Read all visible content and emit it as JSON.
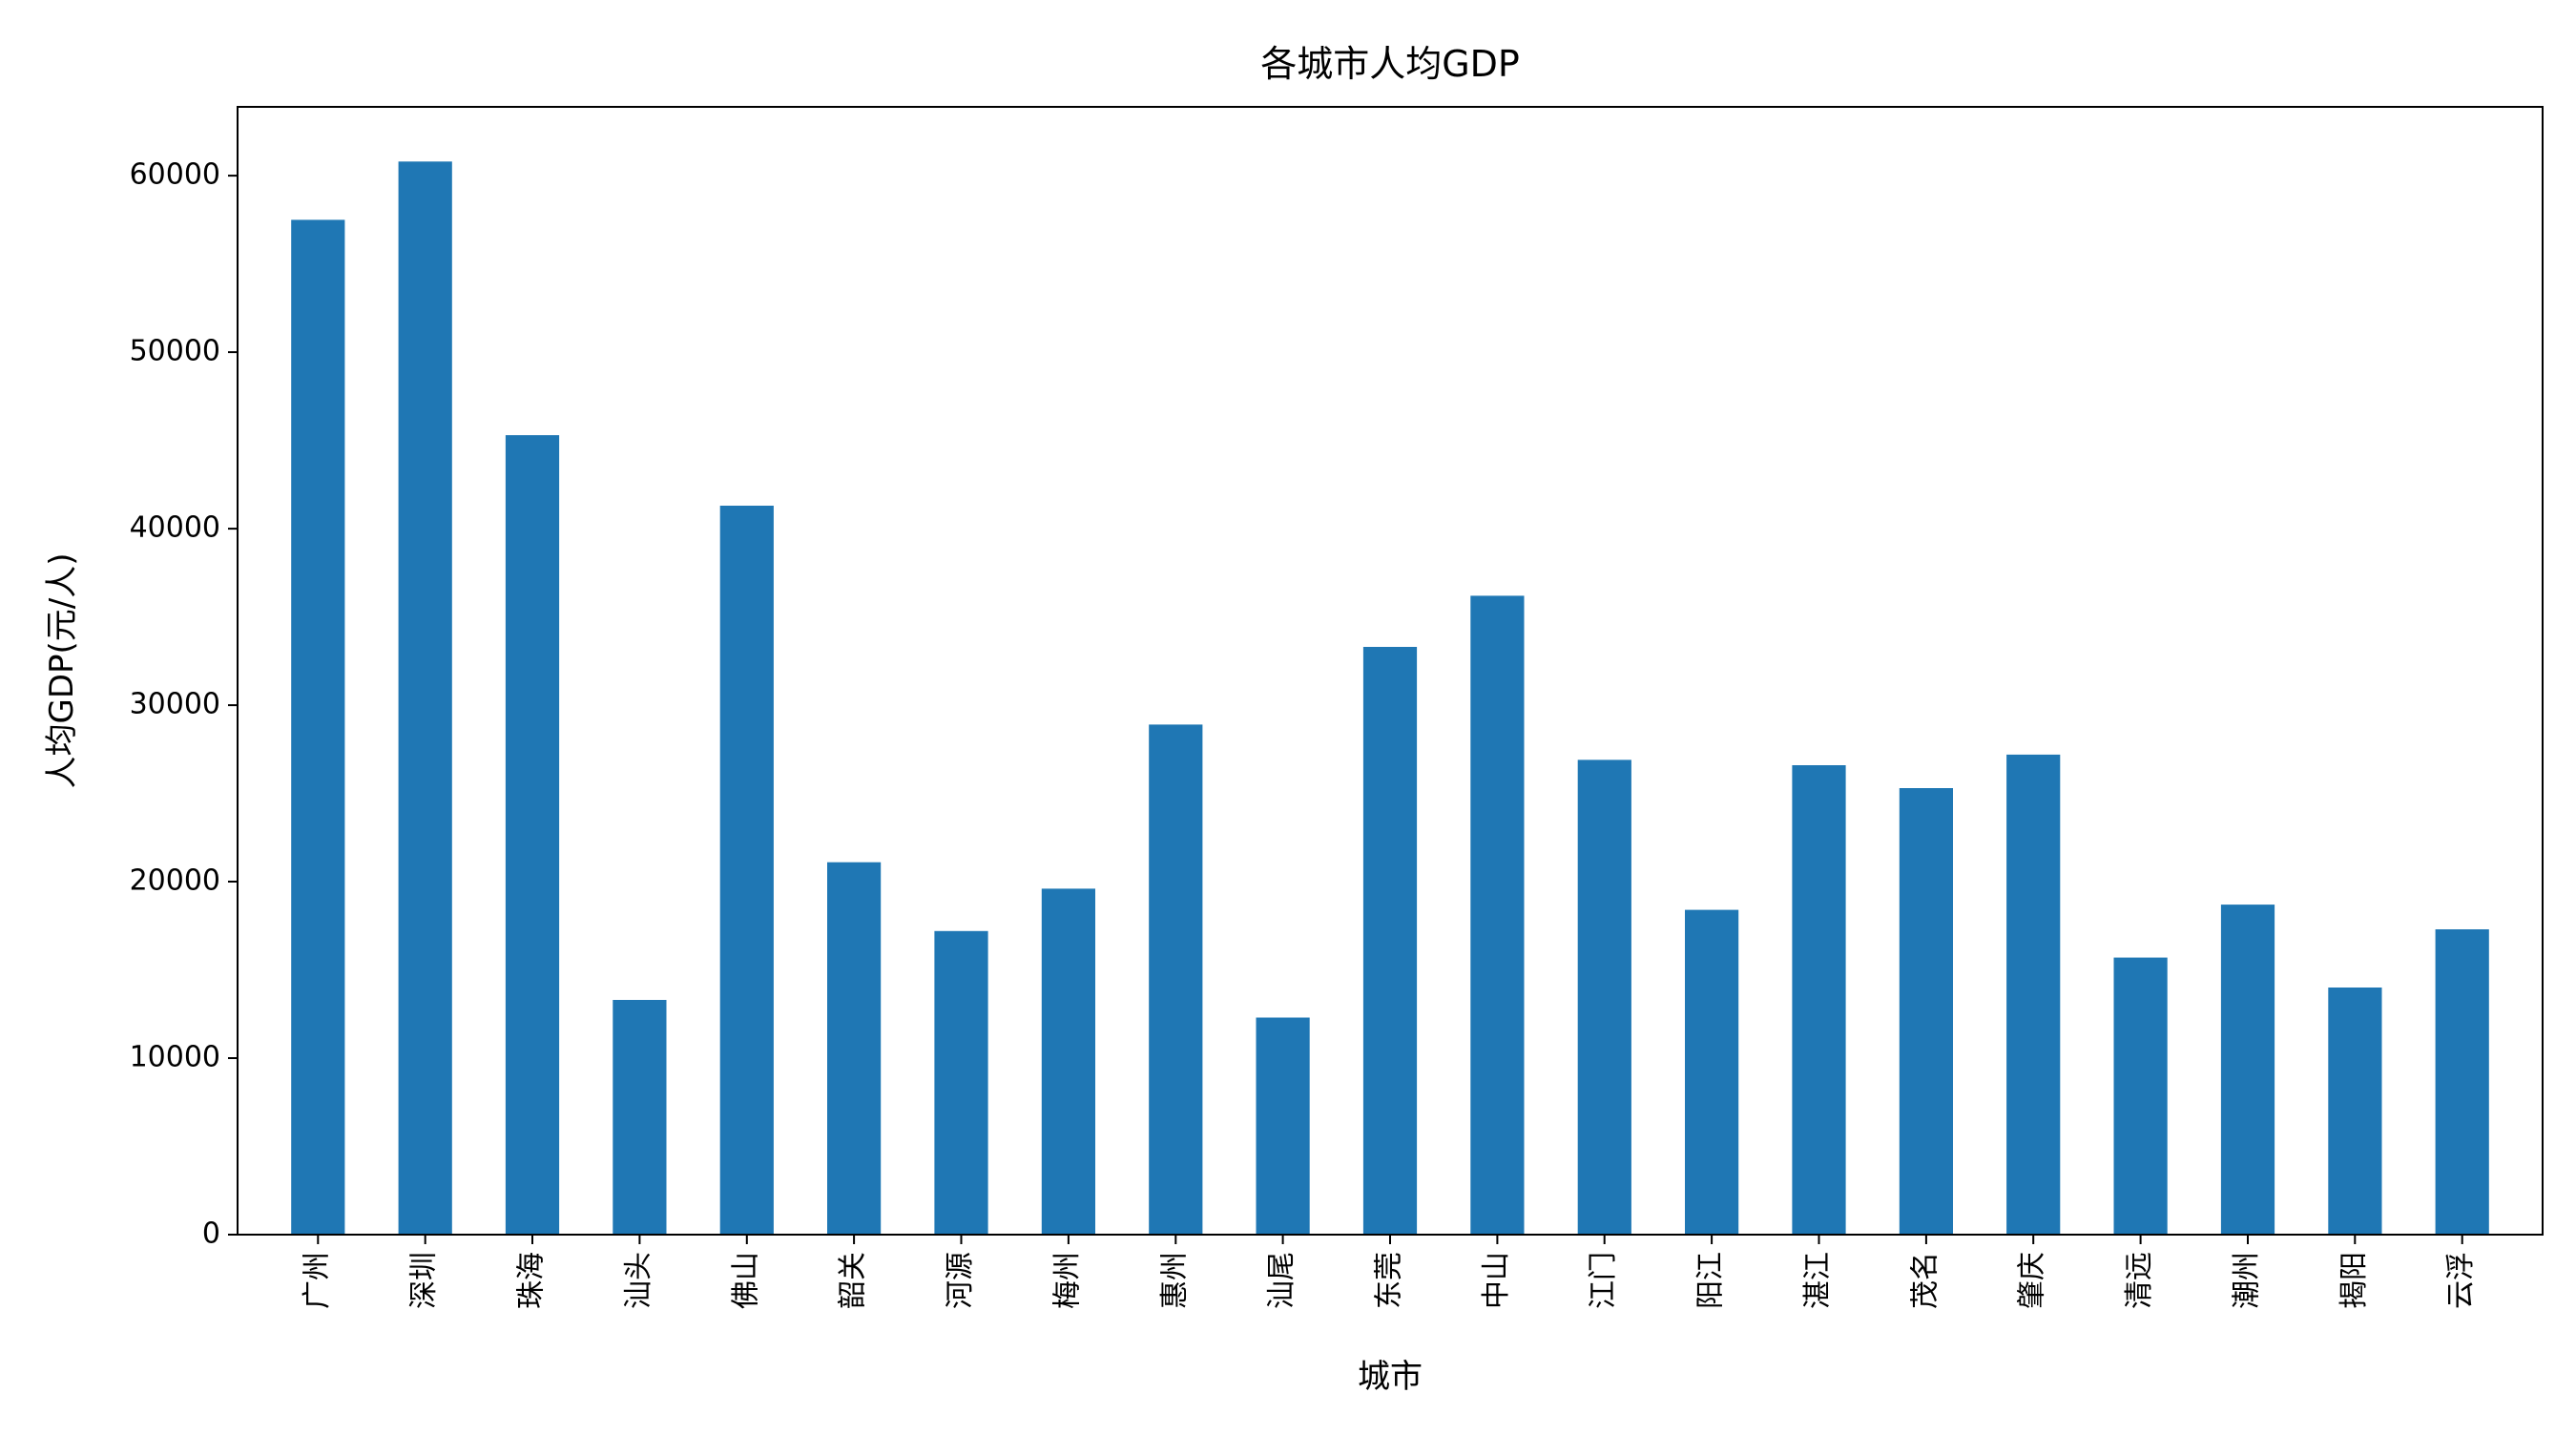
{
  "chart_data": {
    "type": "bar",
    "title": "各城市人均GDP",
    "xlabel": "城市",
    "ylabel": "人均GDP(元/人)",
    "categories": [
      "广州",
      "深圳",
      "珠海",
      "汕头",
      "佛山",
      "韶关",
      "河源",
      "梅州",
      "惠州",
      "汕尾",
      "东莞",
      "中山",
      "江门",
      "阳江",
      "湛江",
      "茂名",
      "肇庆",
      "清远",
      "潮州",
      "揭阳",
      "云浮"
    ],
    "values": [
      57500,
      60800,
      45300,
      13300,
      41300,
      21100,
      17200,
      19600,
      28900,
      12300,
      33300,
      36200,
      26900,
      18400,
      26600,
      25300,
      27200,
      15700,
      18700,
      14000,
      17300
    ],
    "ylim": [
      0,
      63900
    ],
    "yticks": [
      0,
      10000,
      20000,
      30000,
      40000,
      50000,
      60000
    ],
    "grid": false,
    "legend": "none",
    "colors": {
      "bar": "#1f77b4",
      "axis": "#000000",
      "background": "#ffffff"
    }
  }
}
